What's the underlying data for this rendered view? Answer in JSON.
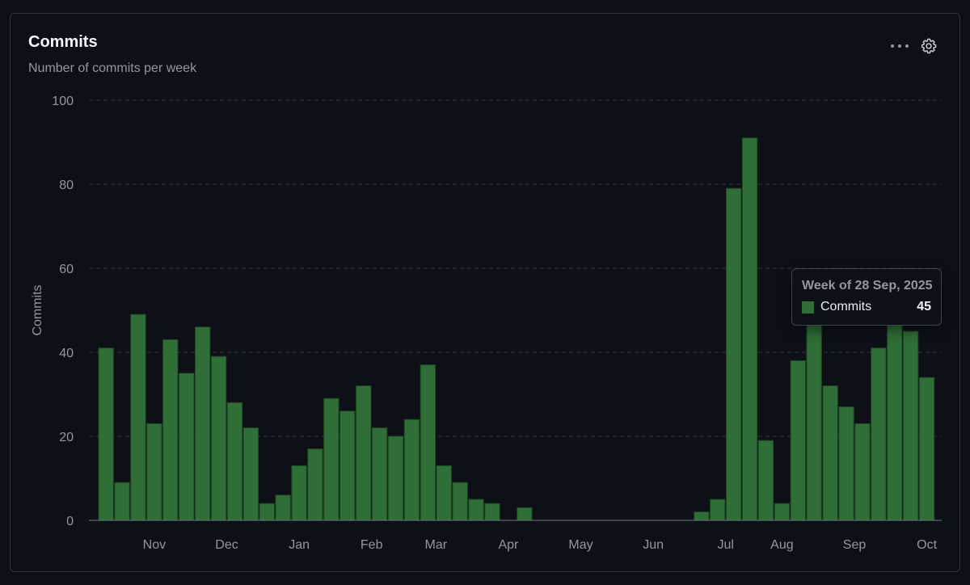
{
  "header": {
    "title": "Commits",
    "subtitle": "Number of commits per week"
  },
  "icons": {
    "menu": "kebab-horizontal-icon",
    "settings": "gear-icon"
  },
  "colors": {
    "bar": "#2f6f37",
    "bar_border": "#1f4a24",
    "background": "#0d1117",
    "grid": "#30363d",
    "text_muted": "#9198a1"
  },
  "tooltip": {
    "title": "Week of 28 Sep, 2025",
    "series_label": "Commits",
    "value": "45"
  },
  "chart_data": {
    "type": "bar",
    "title": "Commits",
    "subtitle": "Number of commits per week",
    "ylabel": "Commits",
    "xlabel": "",
    "ylim": [
      0,
      100
    ],
    "yticks": [
      0,
      20,
      40,
      60,
      80,
      100
    ],
    "grid": true,
    "legend": "none",
    "month_labels": [
      "Nov",
      "Dec",
      "Jan",
      "Feb",
      "Mar",
      "Apr",
      "May",
      "Jun",
      "Jul",
      "Aug",
      "Sep",
      "Oct"
    ],
    "month_label_week": [
      3,
      7.5,
      12,
      16.5,
      20.5,
      25,
      29.5,
      34,
      38.5,
      42,
      46.5,
      51
    ],
    "series": [
      {
        "name": "Commits",
        "values": [
          41,
          9,
          49,
          23,
          43,
          35,
          46,
          39,
          28,
          22,
          4,
          6,
          13,
          17,
          29,
          26,
          32,
          22,
          20,
          24,
          37,
          13,
          9,
          5,
          4,
          0,
          3,
          0,
          0,
          0,
          0,
          0,
          0,
          0,
          0,
          0,
          0,
          2,
          5,
          79,
          91,
          19,
          4,
          38,
          47,
          32,
          27,
          23,
          41,
          47,
          45,
          34
        ]
      }
    ]
  }
}
